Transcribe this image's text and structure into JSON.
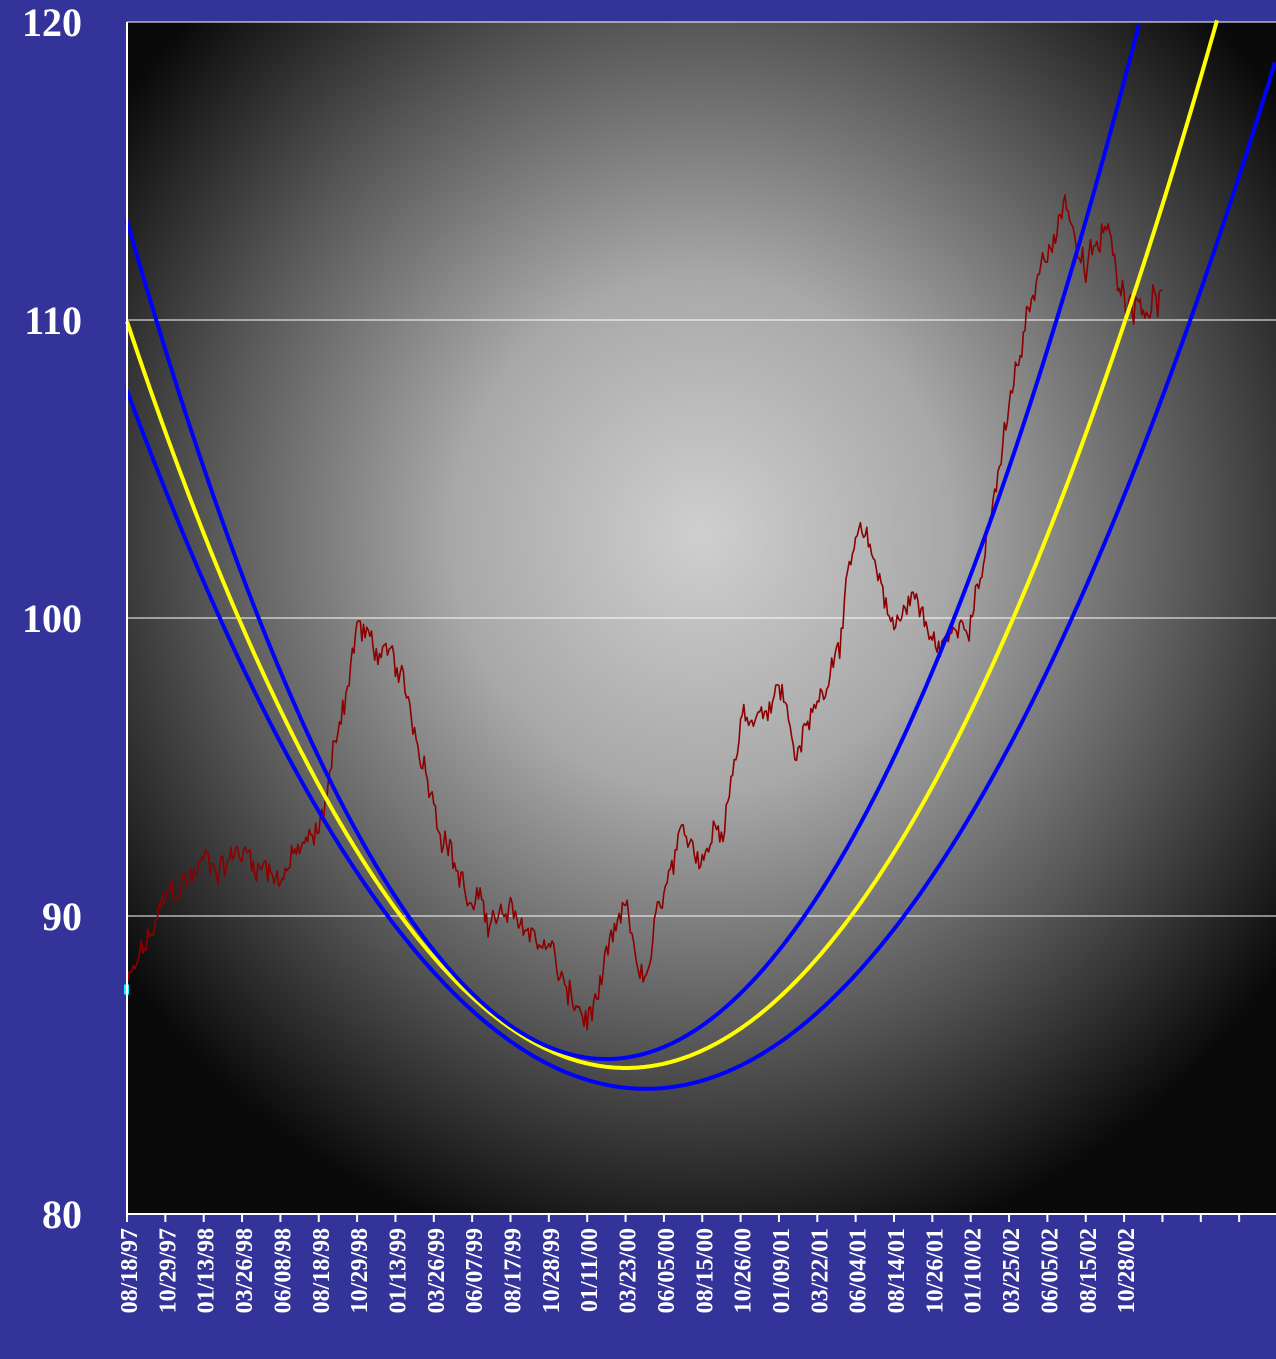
{
  "chart_data": {
    "type": "line",
    "title": "",
    "xlabel": "",
    "ylabel": "",
    "ylim": [
      80,
      120
    ],
    "y_ticks": [
      "80",
      "90",
      "100",
      "110",
      "120"
    ],
    "x_tick_labels": [
      "08/18/97",
      "10/29/97",
      "01/13/98",
      "03/26/98",
      "06/08/98",
      "08/18/98",
      "10/29/98",
      "01/13/99",
      "03/26/99",
      "06/07/99",
      "08/17/99",
      "10/28/99",
      "01/11/00",
      "03/23/00",
      "06/05/00",
      "08/15/00",
      "10/26/00",
      "01/09/01",
      "03/22/01",
      "06/04/01",
      "08/14/01",
      "10/26/01",
      "01/10/02",
      "03/25/02",
      "06/05/02",
      "08/15/02",
      "10/28/02"
    ],
    "x_tick_count": 30,
    "grid": "horizontal",
    "legend": "none",
    "plot_background": "radial gray gradient",
    "colors": {
      "frame": "#333399",
      "price": "#8b0000",
      "fit": "#ffff00",
      "band": "#0000ff",
      "grid": "#ffffff",
      "marker": "#00ffff"
    },
    "series": [
      {
        "role": "price",
        "color": "#8b0000",
        "x_index": [
          0,
          1,
          2,
          3,
          4,
          5,
          6,
          7,
          8,
          9,
          10,
          11,
          11.5,
          12,
          12.5,
          13,
          13.5,
          14,
          14.5,
          15,
          15.5,
          16,
          16.5,
          17,
          17.5,
          18,
          18.5,
          19,
          19.5,
          20,
          20.5,
          21,
          21.5,
          22,
          22.5,
          23,
          23.5,
          24,
          24.5,
          25,
          25.5,
          26,
          26.5,
          27
        ],
        "values": [
          87.5,
          90.2,
          91.8,
          92.2,
          91.6,
          92.6,
          99.8,
          98.0,
          94.3,
          90.3,
          89.6,
          89.1,
          87.2,
          86.3,
          88.0,
          89.7,
          87.5,
          90.5,
          91.8,
          92.3,
          93.5,
          96.8,
          97.2,
          98.0,
          95.5,
          97.0,
          99.5,
          102.5,
          101.5,
          99.8,
          101.0,
          99.0,
          99.2,
          100.7,
          103.0,
          106.8,
          109.8,
          112.5,
          114.2,
          111.5,
          112.8,
          111.0,
          111.0,
          111.0
        ]
      },
      {
        "role": "fit",
        "color": "#ffff00",
        "vertex_x_index": 13.01,
        "vertex_value": 84.9,
        "curvature": 0.148
      },
      {
        "role": "upper-band",
        "color": "#0000ff",
        "vertex_x_index": 12.5,
        "vertex_value": 85.2,
        "curvature": 0.18
      },
      {
        "role": "lower-band",
        "color": "#0000ff",
        "vertex_x_index": 13.53,
        "vertex_value": 84.2,
        "curvature": 0.128
      }
    ]
  }
}
